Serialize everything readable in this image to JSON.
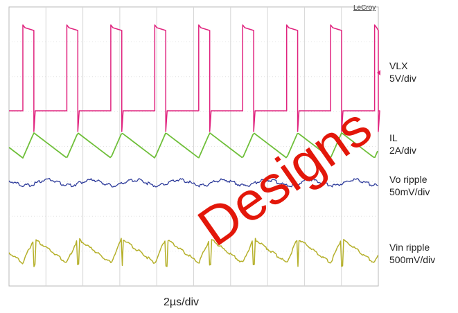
{
  "brand": "LeCroy",
  "timebase": "2µs/div",
  "watermark": "Designs",
  "channels": [
    {
      "name": "VLX",
      "scale": "5V/div",
      "color": "#e0237e"
    },
    {
      "name": "IL",
      "scale": "2A/div",
      "color": "#6fbf3a"
    },
    {
      "name": "Vo ripple",
      "scale": "50mV/div",
      "color": "#2c3a9a"
    },
    {
      "name": "Vin ripple",
      "scale": "500mV/div",
      "color": "#b5b02a"
    }
  ],
  "chart_data": {
    "type": "line",
    "title": "",
    "xlabel": "2µs/div",
    "ylabel": "",
    "grid": true,
    "x_divisions": 10,
    "y_divisions": 8,
    "x_unit": "div",
    "periods_shown": 8.4,
    "series": [
      {
        "name": "VLX",
        "scale": "5V/div",
        "shape": "square pulse",
        "low_div": -1.0,
        "high_div": 2.4,
        "duty": 0.25
      },
      {
        "name": "IL",
        "scale": "2A/div",
        "shape": "triangle",
        "min_div": -0.3,
        "max_div": 0.3
      },
      {
        "name": "Vo ripple",
        "scale": "50mV/div",
        "shape": "ripple",
        "amplitude_div": 0.1
      },
      {
        "name": "Vin ripple",
        "scale": "500mV/div",
        "shape": "sawtooth with spikes",
        "min_div": -0.4,
        "max_div": 0.3
      }
    ]
  }
}
